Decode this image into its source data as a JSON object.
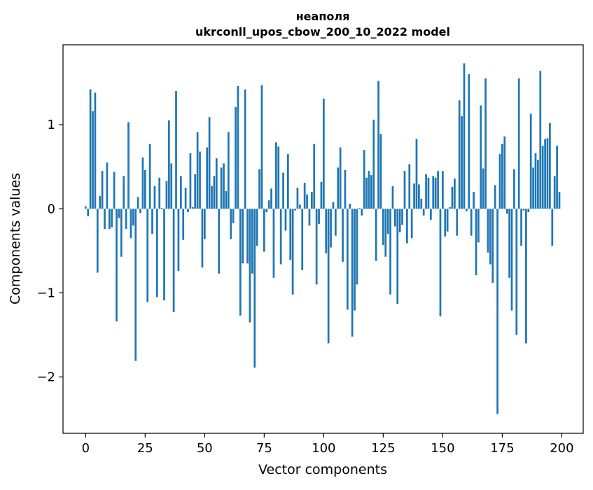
{
  "chart_data": {
    "type": "bar",
    "title": "неаполя",
    "subtitle": "ukrconll_upos_cbow_200_10_2022 model",
    "xlabel": "Vector components",
    "ylabel": "Components values",
    "xlim": [
      -9.5,
      209.0
    ],
    "ylim": [
      -2.67,
      1.95
    ],
    "xticks": [
      0,
      25,
      50,
      75,
      100,
      125,
      150,
      175,
      200
    ],
    "yticks": [
      -2,
      -1,
      0,
      1
    ],
    "ytick_labels": [
      "−2",
      "−1",
      "0",
      "1"
    ],
    "grid": false,
    "legend": "none",
    "bar_color": "#1f77b4",
    "values": [
      0.03,
      -0.09,
      1.42,
      1.16,
      1.38,
      -0.76,
      0.15,
      0.45,
      -0.24,
      0.55,
      -0.24,
      -0.22,
      0.44,
      -1.34,
      -0.11,
      -0.57,
      0.39,
      -0.24,
      1.03,
      -0.35,
      -0.2,
      -1.81,
      0.14,
      -0.05,
      0.61,
      0.46,
      -1.11,
      0.77,
      -0.3,
      0.27,
      -1.05,
      0.37,
      0.01,
      -1.09,
      0.33,
      1.05,
      0.54,
      -1.23,
      1.4,
      -0.74,
      0.39,
      -0.37,
      0.25,
      -0.04,
      0.66,
      0.02,
      0.41,
      0.91,
      0.68,
      -0.7,
      -0.36,
      0.73,
      1.09,
      0.27,
      0.39,
      0.6,
      -0.77,
      0.49,
      0.54,
      0.21,
      0.91,
      -0.36,
      -0.17,
      1.21,
      1.46,
      -1.27,
      -0.65,
      1.42,
      -0.65,
      -1.35,
      -0.77,
      -1.89,
      -0.44,
      0.47,
      1.47,
      -0.51,
      -0.04,
      0.1,
      0.24,
      -0.82,
      0.79,
      0.74,
      -0.66,
      0.43,
      -0.26,
      0.65,
      -0.61,
      -1.02,
      -0.02,
      0.25,
      0.05,
      -0.73,
      0.31,
      0.17,
      -0.2,
      0.2,
      0.77,
      -0.9,
      -0.18,
      0.32,
      1.31,
      -0.53,
      -1.6,
      -0.46,
      0.08,
      -0.32,
      0.49,
      0.73,
      -0.63,
      0.46,
      -1.2,
      0.06,
      -1.52,
      -1.21,
      -0.9,
      0.01,
      -0.08,
      0.7,
      0.37,
      0.45,
      0.4,
      1.06,
      -0.62,
      1.52,
      0.89,
      -0.43,
      -0.57,
      -0.3,
      -1.02,
      0.27,
      -0.21,
      -1.13,
      -0.28,
      -0.19,
      0.45,
      -0.41,
      0.53,
      -0.35,
      0.3,
      0.83,
      0.29,
      0.12,
      -0.08,
      0.41,
      0.37,
      -0.13,
      0.39,
      0.37,
      0.45,
      -1.28,
      0.45,
      -0.33,
      -0.27,
      0.02,
      0.26,
      0.36,
      -0.32,
      1.29,
      1.1,
      1.73,
      -0.03,
      1.6,
      -0.32,
      0.2,
      -0.79,
      -0.4,
      1.23,
      0.48,
      1.55,
      -0.52,
      -0.66,
      -0.88,
      0.28,
      -2.44,
      0.65,
      0.77,
      0.86,
      -0.06,
      -0.82,
      -1.21,
      0.47,
      -1.5,
      1.55,
      -0.44,
      -0.02,
      -1.6,
      -0.04,
      1.13,
      0.49,
      0.66,
      0.58,
      1.64,
      0.75,
      0.83,
      0.84,
      1.02,
      -0.44,
      0.39,
      0.75,
      0.2
    ]
  }
}
